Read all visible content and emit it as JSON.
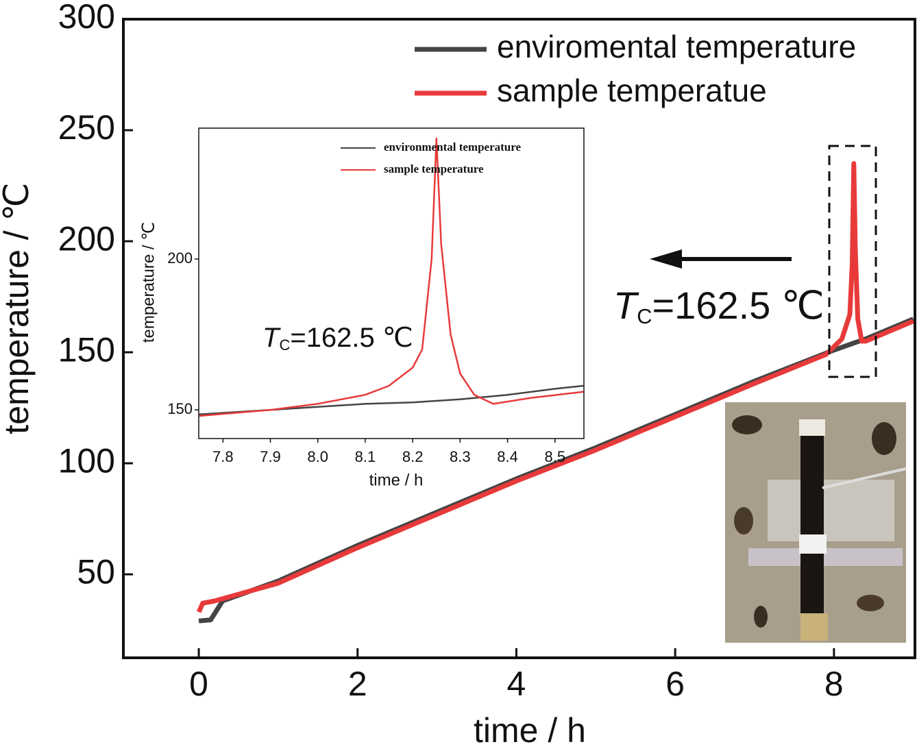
{
  "chart_data": [
    {
      "type": "line",
      "xlabel": "time / h",
      "ylabel": "temperature / ℃",
      "xlim": [
        -0.95,
        9.02
      ],
      "ylim": [
        12.4,
        300
      ],
      "xticks": [
        0,
        2,
        4,
        6,
        8
      ],
      "yticks": [
        50,
        100,
        150,
        200,
        250,
        300
      ],
      "legend": "upper right",
      "annotation": {
        "symbol": "T",
        "subscript": "C",
        "text": "=162.5 ℃"
      },
      "series": [
        {
          "name": "enviromental temperature",
          "color": "#444444",
          "x": [
            0,
            0.15,
            0.3,
            1,
            2,
            3,
            4,
            5,
            6,
            7,
            8,
            8.4,
            9
          ],
          "values": [
            29,
            29.5,
            38,
            47,
            63,
            78,
            93,
            107,
            122,
            137,
            151,
            156,
            165
          ]
        },
        {
          "name": "sample temperatue",
          "color": "#e83a3a",
          "x": [
            0,
            0.05,
            0.2,
            0.3,
            1,
            2,
            3,
            4,
            5,
            6,
            7,
            7.9,
            8.1,
            8.2,
            8.23,
            8.25,
            8.27,
            8.3,
            8.35,
            8.4,
            9
          ],
          "values": [
            33,
            37,
            38,
            39,
            46,
            62,
            77,
            92,
            106,
            121,
            136,
            149,
            156,
            167,
            190,
            235,
            195,
            165,
            155,
            155,
            164
          ]
        }
      ]
    },
    {
      "type": "line",
      "xlabel": "time / h",
      "ylabel": "temperature / ℃",
      "xlim": [
        7.749,
        8.561
      ],
      "ylim": [
        140.5,
        243.4
      ],
      "xticks": [
        7.8,
        7.9,
        {
          "value": 8,
          "label": "8.0"
        },
        8.1,
        8.2,
        8.3,
        8.4,
        8.5
      ],
      "yticks": [
        150,
        200
      ],
      "legend": "upper center",
      "annotation": {
        "symbol": "T",
        "subscript": "C",
        "text": "=162.5 ℃"
      },
      "series": [
        {
          "name": "environmental temperature",
          "color": "#444444",
          "x": [
            7.75,
            7.9,
            8.0,
            8.1,
            8.2,
            8.3,
            8.4,
            8.5,
            8.56
          ],
          "values": [
            148.5,
            150,
            151,
            152,
            152.5,
            153.5,
            155,
            157,
            158
          ]
        },
        {
          "name": "sample temperature",
          "color": "#e83a3a",
          "x": [
            7.75,
            7.9,
            8.0,
            8.1,
            8.15,
            8.2,
            8.22,
            8.24,
            8.25,
            8.26,
            8.28,
            8.3,
            8.33,
            8.37,
            8.45,
            8.56
          ],
          "values": [
            148,
            150,
            152,
            155,
            158,
            164,
            170,
            200,
            240,
            205,
            175,
            162,
            155,
            152,
            154,
            156
          ]
        }
      ]
    }
  ]
}
